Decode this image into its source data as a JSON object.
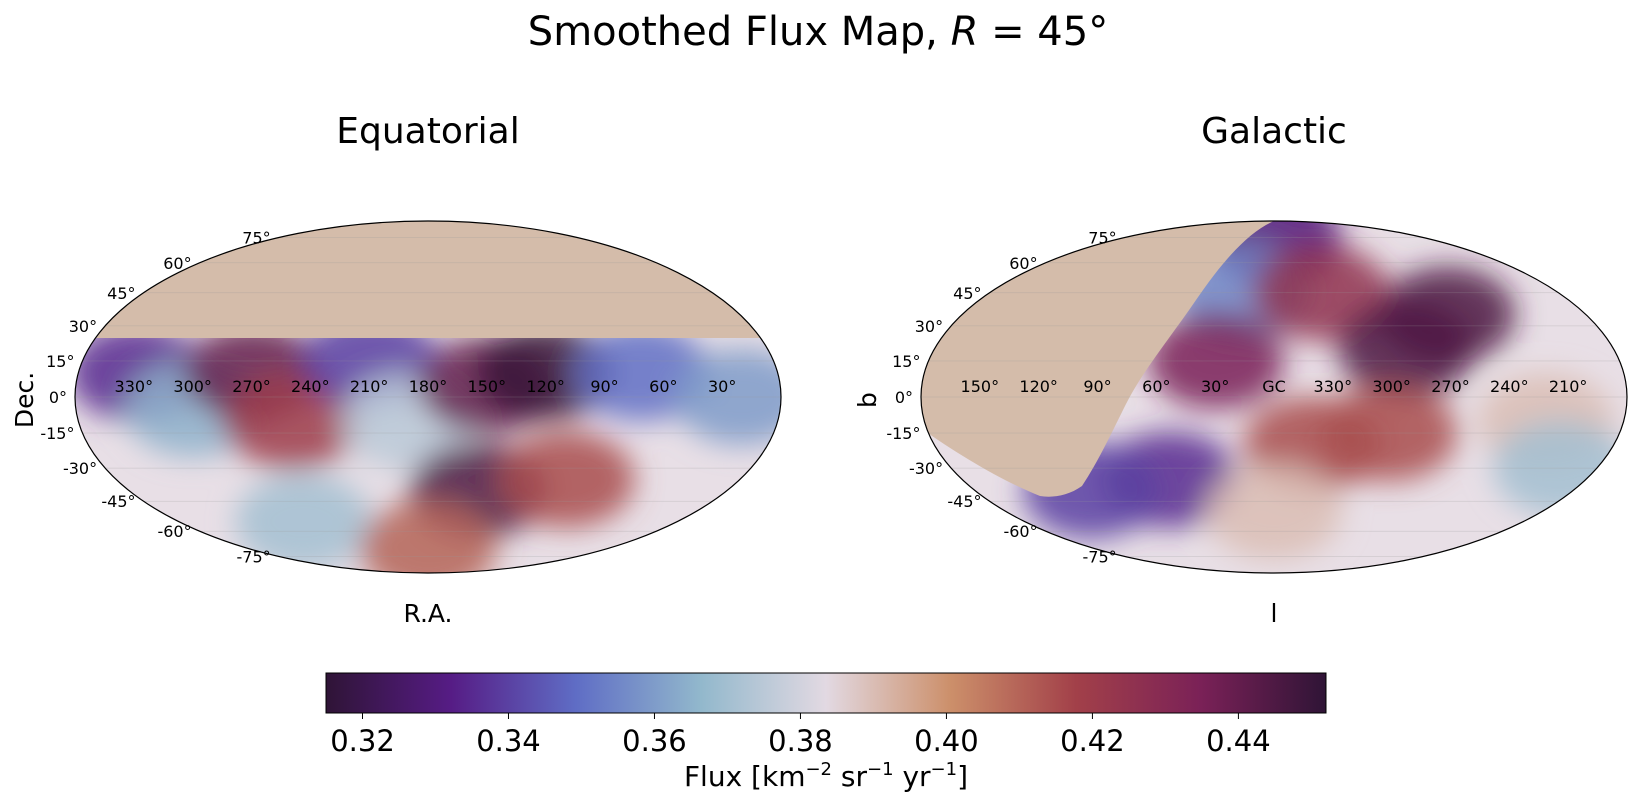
{
  "figure": {
    "title": "Smoothed Flux Map, ",
    "title_math_var": "R",
    "title_math_rest": " = 45°"
  },
  "chart_data": [
    {
      "type": "heatmap",
      "projection": "mollweide",
      "title": "Equatorial",
      "xlabel": "R.A.",
      "ylabel": "Dec.",
      "lon_tick_labels": [
        "330°",
        "300°",
        "270°",
        "240°",
        "210°",
        "180°",
        "150°",
        "120°",
        "90°",
        "60°",
        "30°"
      ],
      "lat_tick_labels": [
        "75°",
        "60°",
        "45°",
        "30°",
        "15°",
        "0°",
        "-15°",
        "-30°",
        "-45°",
        "-60°",
        "-75°"
      ],
      "masked_region": "declination above ~+25°",
      "mask_color": "#d4bcaa",
      "grid": true,
      "flux_blobs": [
        {
          "lon_deg": 330,
          "lat_deg": 10,
          "flux": 0.335
        },
        {
          "lon_deg": 300,
          "lat_deg": -5,
          "flux": 0.365
        },
        {
          "lon_deg": 270,
          "lat_deg": 10,
          "flux": 0.44
        },
        {
          "lon_deg": 250,
          "lat_deg": -10,
          "flux": 0.42
        },
        {
          "lon_deg": 210,
          "lat_deg": 15,
          "flux": 0.34
        },
        {
          "lon_deg": 190,
          "lat_deg": -10,
          "flux": 0.375
        },
        {
          "lon_deg": 150,
          "lat_deg": -40,
          "flux": 0.445
        },
        {
          "lon_deg": 150,
          "lat_deg": 5,
          "flux": 0.44
        },
        {
          "lon_deg": 120,
          "lat_deg": 10,
          "flux": 0.45
        },
        {
          "lon_deg": 100,
          "lat_deg": -35,
          "flux": 0.415
        },
        {
          "lon_deg": 70,
          "lat_deg": 10,
          "flux": 0.35
        },
        {
          "lon_deg": 20,
          "lat_deg": 0,
          "flux": 0.36
        },
        {
          "lon_deg": 270,
          "lat_deg": -55,
          "flux": 0.37
        },
        {
          "lon_deg": 180,
          "lat_deg": -70,
          "flux": 0.41
        }
      ]
    },
    {
      "type": "heatmap",
      "projection": "mollweide",
      "title": "Galactic",
      "xlabel": "l",
      "ylabel": "b",
      "lon_tick_labels": [
        "150°",
        "120°",
        "90°",
        "60°",
        "30°",
        "GC",
        "330°",
        "300°",
        "270°",
        "240°",
        "210°"
      ],
      "lat_tick_labels": [
        "75°",
        "60°",
        "45°",
        "30°",
        "15°",
        "0°",
        "-15°",
        "-30°",
        "-45°",
        "-60°",
        "-75°"
      ],
      "masked_region": "equatorial dec above ~+25° mapped to galactic coordinates",
      "mask_color": "#d4bcaa",
      "grid": true,
      "flux_blobs": [
        {
          "lon_deg": 0,
          "lat_deg": 75,
          "flux": 0.33
        },
        {
          "lon_deg": 20,
          "lat_deg": 45,
          "flux": 0.355
        },
        {
          "lon_deg": 30,
          "lat_deg": 15,
          "flux": 0.435
        },
        {
          "lon_deg": 330,
          "lat_deg": 45,
          "flux": 0.425
        },
        {
          "lon_deg": 290,
          "lat_deg": 20,
          "flux": 0.445
        },
        {
          "lon_deg": 260,
          "lat_deg": 35,
          "flux": 0.445
        },
        {
          "lon_deg": 340,
          "lat_deg": -20,
          "flux": 0.415
        },
        {
          "lon_deg": 300,
          "lat_deg": -15,
          "flux": 0.415
        },
        {
          "lon_deg": 220,
          "lat_deg": -10,
          "flux": 0.39
        },
        {
          "lon_deg": 60,
          "lat_deg": -35,
          "flux": 0.335
        },
        {
          "lon_deg": 110,
          "lat_deg": -40,
          "flux": 0.34
        },
        {
          "lon_deg": 0,
          "lat_deg": -50,
          "flux": 0.39
        },
        {
          "lon_deg": 200,
          "lat_deg": -30,
          "flux": 0.37
        }
      ]
    }
  ],
  "colorbar": {
    "label_prefix": "Flux [km",
    "label_sup1": "−2",
    "label_mid1": " sr",
    "label_sup2": "−1",
    "label_mid2": " yr",
    "label_sup3": "−1",
    "label_suffix": "]",
    "vmin": 0.315,
    "vmax": 0.452,
    "ticks": [
      0.32,
      0.34,
      0.36,
      0.38,
      0.4,
      0.42,
      0.44
    ],
    "tick_labels": [
      "0.32",
      "0.34",
      "0.36",
      "0.38",
      "0.40",
      "0.42",
      "0.44"
    ],
    "colormap": "twilight_shifted",
    "colormap_stops": [
      "#2f1436",
      "#561c85",
      "#5f6dc5",
      "#92b8cc",
      "#e2d9e2",
      "#cc8f6a",
      "#a24049",
      "#7a2157",
      "#2f1436"
    ]
  }
}
